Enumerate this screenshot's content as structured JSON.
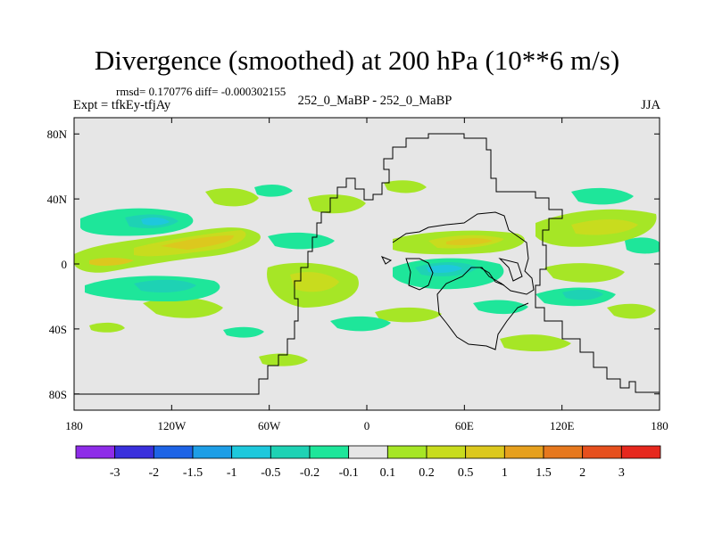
{
  "figure": {
    "title": "Divergence (smoothed) at 200 hPa (10**6 m/s)",
    "stats": "rmsd= 0.170776 diff= -0.000302155",
    "experiment": "Expt = tfkEy-tfjAy",
    "case": "252_0_MaBP - 252_0_MaBP",
    "season": "JJA"
  },
  "map": {
    "projection": "cylindrical equidistant",
    "lon_range": [
      -180,
      180
    ],
    "lat_range": [
      -90,
      90
    ],
    "lon_ticks": [
      {
        "value": -180,
        "label": "180"
      },
      {
        "value": -120,
        "label": "120W"
      },
      {
        "value": -60,
        "label": "60W"
      },
      {
        "value": 0,
        "label": "0"
      },
      {
        "value": 60,
        "label": "60E"
      },
      {
        "value": 120,
        "label": "120E"
      },
      {
        "value": 180,
        "label": "180"
      }
    ],
    "lat_ticks": [
      {
        "value": 80,
        "label": "80N"
      },
      {
        "value": 40,
        "label": "40N"
      },
      {
        "value": 0,
        "label": "0"
      },
      {
        "value": -40,
        "label": "40S"
      },
      {
        "value": -80,
        "label": "80S"
      }
    ],
    "background_color": "#e6e6e6",
    "coastline_color": "#000000"
  },
  "colorbar": {
    "colors": [
      "#8e2ce8",
      "#3a30dc",
      "#1e64e6",
      "#1e9ee6",
      "#1ec8dc",
      "#1ed2b4",
      "#1ee69a",
      "#e6e6e6",
      "#a6e626",
      "#c8dc1e",
      "#dcc81e",
      "#e6a01e",
      "#e6781e",
      "#e6501e",
      "#e6281e"
    ],
    "labels": [
      "-3",
      "-2",
      "-1.5",
      "-1",
      "-0.5",
      "-0.2",
      "-0.1",
      "0.1",
      "0.2",
      "0.5",
      "1",
      "1.5",
      "2",
      "3"
    ]
  }
}
